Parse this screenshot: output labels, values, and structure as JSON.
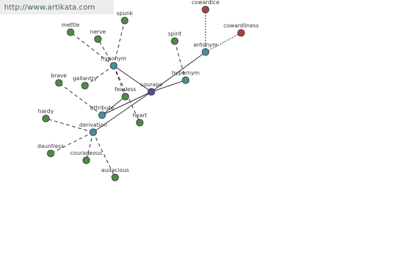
{
  "watermark": "http://www.artikata.com",
  "nodes": [
    {
      "label": "courage"
    },
    {
      "label": "hyponym"
    },
    {
      "label": "hypernym"
    },
    {
      "label": "antonym"
    },
    {
      "label": "attribute"
    },
    {
      "label": "derivation"
    },
    {
      "label": "cowardice"
    },
    {
      "label": "cowardliness"
    },
    {
      "label": "spunk"
    },
    {
      "label": "mettle"
    },
    {
      "label": "nerve"
    },
    {
      "label": "brave"
    },
    {
      "label": "gallantry"
    },
    {
      "label": "fearless"
    },
    {
      "label": "heart"
    },
    {
      "label": "spirit"
    },
    {
      "label": "hardy"
    },
    {
      "label": "dauntless"
    },
    {
      "label": "courageous"
    },
    {
      "label": "audacious"
    }
  ]
}
